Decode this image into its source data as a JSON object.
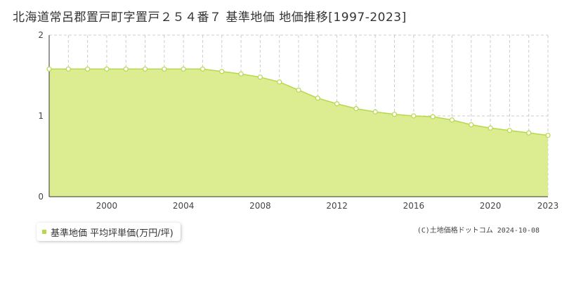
{
  "title": "北海道常呂郡置戸町字置戸２５４番７ 基準地価 地価推移[1997-2023]",
  "legend": {
    "label": "基準地価 平均坪単価(万円/坪)",
    "color": "#b5d94a"
  },
  "credit": "(C)土地価格ドットコム 2024-10-08",
  "colors": {
    "fill": "#dbec91",
    "line": "#b5d94a",
    "marker_fill": "#ffffff",
    "grid": "#cccccc",
    "axis": "#333333"
  },
  "chart_data": {
    "type": "area",
    "title": "北海道常呂郡置戸町字置戸２５４番７ 基準地価 地価推移[1997-2023]",
    "xlabel": "",
    "ylabel": "",
    "xlim": [
      1997,
      2023
    ],
    "ylim": [
      0,
      2
    ],
    "x_ticks": [
      2000,
      2004,
      2008,
      2012,
      2016,
      2020,
      2023
    ],
    "y_ticks": [
      0,
      1,
      2
    ],
    "grid": true,
    "legend_position": "bottom-left",
    "series": [
      {
        "name": "基準地価 平均坪単価(万円/坪)",
        "x": [
          1997,
          1998,
          1999,
          2000,
          2001,
          2002,
          2003,
          2004,
          2005,
          2006,
          2007,
          2008,
          2009,
          2010,
          2011,
          2012,
          2013,
          2014,
          2015,
          2016,
          2017,
          2018,
          2019,
          2020,
          2021,
          2022,
          2023
        ],
        "y": [
          1.58,
          1.58,
          1.58,
          1.58,
          1.58,
          1.58,
          1.58,
          1.58,
          1.58,
          1.55,
          1.52,
          1.48,
          1.42,
          1.32,
          1.22,
          1.15,
          1.09,
          1.05,
          1.02,
          1.0,
          0.99,
          0.95,
          0.89,
          0.85,
          0.82,
          0.79,
          0.76
        ]
      }
    ]
  }
}
